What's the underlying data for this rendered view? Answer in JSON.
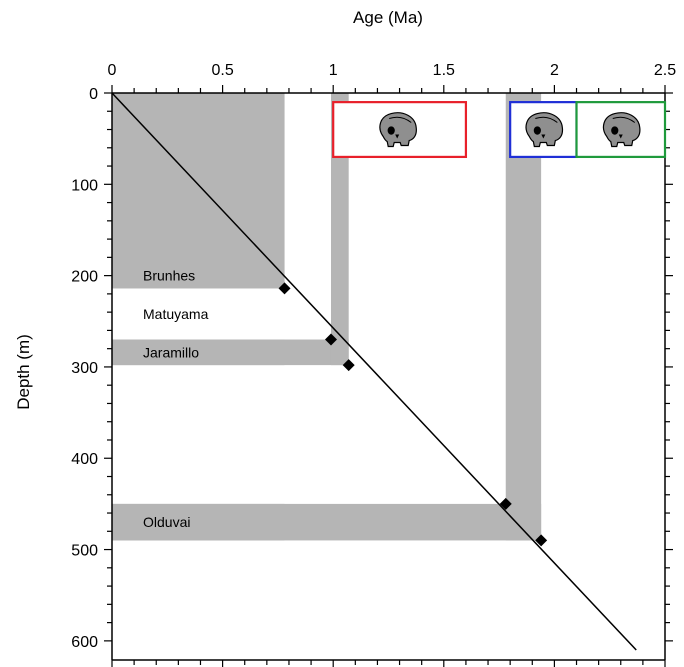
{
  "chart_data": {
    "type": "scatter",
    "xlabel": "Age (Ma)",
    "ylabel": "Depth (m)",
    "xlim": [
      0,
      2.5
    ],
    "ylim": [
      0,
      610
    ],
    "x_ticks": [
      "0",
      "0.5",
      "1",
      "1.5",
      "2",
      "2.5"
    ],
    "x_tick_values": [
      0,
      0.5,
      1,
      1.5,
      2,
      2.5
    ],
    "y_ticks": [
      "0",
      "100",
      "200",
      "300",
      "400",
      "500",
      "600"
    ],
    "y_tick_values": [
      0,
      100,
      200,
      300,
      400,
      500,
      600
    ],
    "x_axis_position": "top",
    "grid": false,
    "bar_color": "#b5b5b5",
    "line": {
      "x": [
        0,
        2.37
      ],
      "y": [
        0,
        610
      ],
      "color": "#000000"
    },
    "points": [
      {
        "x": 0.78,
        "y": 214
      },
      {
        "x": 0.99,
        "y": 270
      },
      {
        "x": 1.07,
        "y": 298
      },
      {
        "x": 1.78,
        "y": 450
      },
      {
        "x": 1.94,
        "y": 490
      }
    ],
    "vertical_bands": [
      {
        "x0": 0,
        "x1": 0.78,
        "y0": 0,
        "y1": 214
      },
      {
        "x0": 0.99,
        "x1": 1.07,
        "y0": 0,
        "y1": 298
      },
      {
        "x0": 1.78,
        "x1": 1.94,
        "y0": 0,
        "y1": 490
      }
    ],
    "horizontal_bands": [
      {
        "label": "Brunhes",
        "y0": 0,
        "y1": 214,
        "shaded": true
      },
      {
        "label": "Matuyama",
        "y0": 214,
        "y1": 270,
        "shaded": false
      },
      {
        "label": "Jaramillo",
        "y0": 270,
        "y1": 298,
        "shaded": true
      },
      {
        "label": "Olduvai",
        "y0": 450,
        "y1": 490,
        "shaded": true
      }
    ],
    "skull_boxes": [
      {
        "x0": 1.0,
        "x1": 1.6,
        "y0": 10,
        "y1": 70,
        "color": "#e8202a"
      },
      {
        "x0": 1.8,
        "x1": 2.1,
        "y0": 10,
        "y1": 70,
        "color": "#1f2fd6"
      },
      {
        "x0": 2.1,
        "x1": 2.5,
        "y0": 10,
        "y1": 70,
        "color": "#1f9a3c"
      }
    ],
    "skull_icon": "hominin-skull-icon"
  }
}
